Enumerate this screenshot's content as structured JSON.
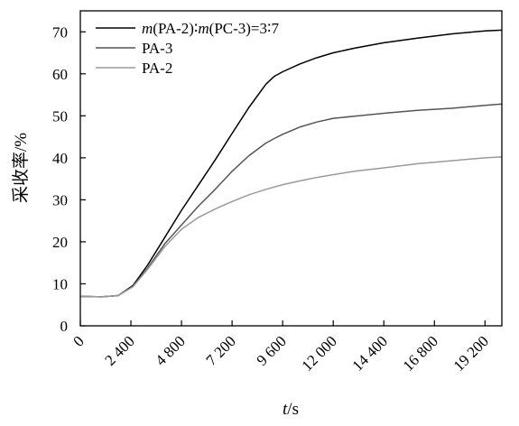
{
  "chart_data": {
    "type": "line",
    "xlabel": "t/s",
    "ylabel": "采收率/%",
    "xlim": [
      0,
      20000
    ],
    "ylim": [
      0,
      75
    ],
    "x_ticks": [
      0,
      2400,
      4800,
      7200,
      9600,
      12000,
      14400,
      16800,
      19200
    ],
    "x_tick_labels": [
      "0",
      "2 400",
      "4 800",
      "7 200",
      "9 600",
      "12 000",
      "14 400",
      "16 800",
      "19 200"
    ],
    "y_ticks": [
      0,
      10,
      20,
      30,
      40,
      50,
      60,
      70
    ],
    "y_tick_labels": [
      "0",
      "10",
      "20",
      "30",
      "40",
      "50",
      "60",
      "70"
    ],
    "grid": false,
    "legend_position": "top-left",
    "series": [
      {
        "name": "m(PA-2)∶m(PC-3)=3∶7",
        "color": "#000000",
        "x": [
          0,
          1000,
          1800,
          2500,
          3200,
          4000,
          4800,
          5600,
          6400,
          7200,
          8000,
          8800,
          9200,
          9600,
          10400,
          11200,
          12000,
          13000,
          14400,
          16000,
          17600,
          19200,
          20000
        ],
        "y": [
          7,
          6.9,
          7.2,
          9.6,
          14.5,
          21,
          27.5,
          33.5,
          39.5,
          45.8,
          52,
          57.5,
          59.4,
          60.5,
          62.3,
          63.8,
          65,
          66.1,
          67.4,
          68.5,
          69.5,
          70.2,
          70.4
        ]
      },
      {
        "name": "PA-3",
        "color": "#555555",
        "x": [
          0,
          1000,
          1800,
          2500,
          3200,
          4000,
          4800,
          5600,
          6400,
          7200,
          8000,
          8800,
          9200,
          9600,
          10400,
          11200,
          12000,
          13000,
          14400,
          16000,
          17600,
          19200,
          20000
        ],
        "y": [
          7,
          6.9,
          7.2,
          9.4,
          13.8,
          19.5,
          24,
          28.5,
          32.5,
          36.8,
          40.5,
          43.5,
          44.6,
          45.6,
          47.3,
          48.5,
          49.4,
          49.9,
          50.6,
          51.3,
          51.8,
          52.5,
          52.8
        ]
      },
      {
        "name": "PA-2",
        "color": "#9a9a9a",
        "x": [
          0,
          1000,
          1800,
          2500,
          3200,
          4000,
          4800,
          5600,
          6400,
          7200,
          8000,
          8800,
          9600,
          10400,
          11200,
          12000,
          13000,
          14400,
          16000,
          17600,
          19200,
          20000
        ],
        "y": [
          7,
          6.9,
          7.2,
          9.3,
          13.5,
          18.8,
          23,
          25.8,
          27.8,
          29.6,
          31.2,
          32.5,
          33.6,
          34.5,
          35.3,
          36,
          36.8,
          37.6,
          38.6,
          39.3,
          40,
          40.2
        ]
      }
    ]
  }
}
